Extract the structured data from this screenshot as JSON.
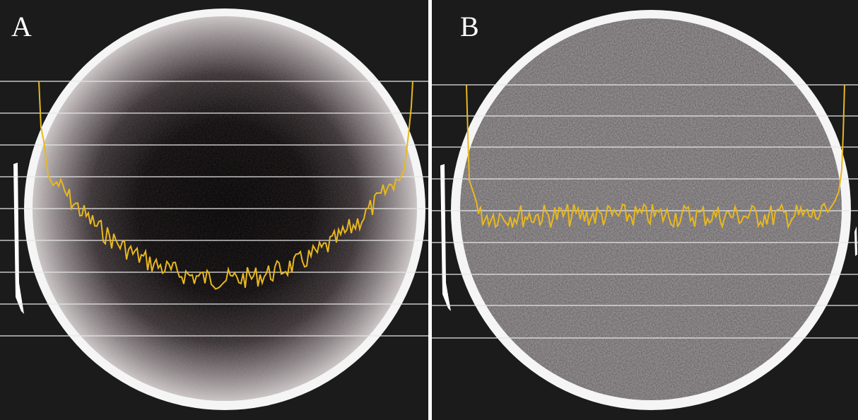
{
  "panels": [
    {
      "id": "A",
      "label": "A",
      "description": "non-uniform",
      "profile_color": "#e8b81e",
      "profile_shape": "cupped"
    },
    {
      "id": "B",
      "label": "B",
      "description": "uniform",
      "profile_color": "#e8b81e",
      "profile_shape": "flat"
    }
  ],
  "colors": {
    "background": "#1b1b1b",
    "ring": "#f5f5f5",
    "gridline": "#e6e6e6",
    "profile": "#e8b81e"
  }
}
